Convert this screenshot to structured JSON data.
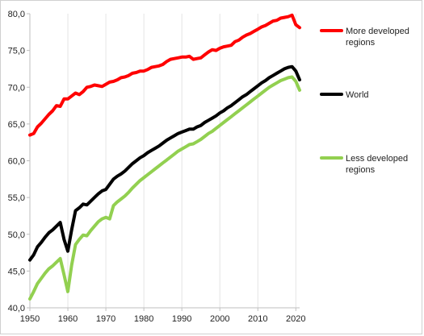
{
  "chart_data": {
    "type": "line",
    "title": "",
    "xlabel": "",
    "ylabel": "",
    "xlim": [
      1950,
      2021
    ],
    "ylim": [
      40,
      80
    ],
    "x_ticks": [
      1950,
      1960,
      1970,
      1980,
      1990,
      2000,
      2010,
      2020
    ],
    "y_ticks": [
      40,
      45,
      50,
      55,
      60,
      65,
      70,
      75,
      80
    ],
    "y_tick_labels": [
      "40,0",
      "45,0",
      "50,0",
      "55,0",
      "60,0",
      "65,0",
      "70,0",
      "75,0",
      "80,0"
    ],
    "grid": {
      "vertical": true,
      "horizontal": false
    },
    "legend_position": "right",
    "series": [
      {
        "name": "More developed regions",
        "name_lines": [
          "More developed",
          "regions"
        ],
        "color": "#ff0000",
        "points": [
          [
            1950,
            63.5
          ],
          [
            1951,
            63.7
          ],
          [
            1952,
            64.6
          ],
          [
            1953,
            65.1
          ],
          [
            1954,
            65.7
          ],
          [
            1955,
            66.3
          ],
          [
            1956,
            66.8
          ],
          [
            1957,
            67.5
          ],
          [
            1958,
            67.4
          ],
          [
            1959,
            68.4
          ],
          [
            1960,
            68.4
          ],
          [
            1961,
            68.8
          ],
          [
            1962,
            69.2
          ],
          [
            1963,
            69.0
          ],
          [
            1964,
            69.4
          ],
          [
            1965,
            70.0
          ],
          [
            1966,
            70.1
          ],
          [
            1967,
            70.3
          ],
          [
            1968,
            70.2
          ],
          [
            1969,
            70.1
          ],
          [
            1970,
            70.4
          ],
          [
            1971,
            70.7
          ],
          [
            1972,
            70.8
          ],
          [
            1973,
            71.0
          ],
          [
            1974,
            71.3
          ],
          [
            1975,
            71.4
          ],
          [
            1976,
            71.6
          ],
          [
            1977,
            71.9
          ],
          [
            1978,
            72.0
          ],
          [
            1979,
            72.2
          ],
          [
            1980,
            72.2
          ],
          [
            1981,
            72.4
          ],
          [
            1982,
            72.7
          ],
          [
            1983,
            72.8
          ],
          [
            1984,
            72.9
          ],
          [
            1985,
            73.1
          ],
          [
            1986,
            73.5
          ],
          [
            1987,
            73.8
          ],
          [
            1988,
            73.9
          ],
          [
            1989,
            74.0
          ],
          [
            1990,
            74.1
          ],
          [
            1991,
            74.1
          ],
          [
            1992,
            74.2
          ],
          [
            1993,
            73.8
          ],
          [
            1994,
            73.9
          ],
          [
            1995,
            74.0
          ],
          [
            1996,
            74.4
          ],
          [
            1997,
            74.8
          ],
          [
            1998,
            75.1
          ],
          [
            1999,
            75.0
          ],
          [
            2000,
            75.3
          ],
          [
            2001,
            75.5
          ],
          [
            2002,
            75.6
          ],
          [
            2003,
            75.7
          ],
          [
            2004,
            76.2
          ],
          [
            2005,
            76.4
          ],
          [
            2006,
            76.8
          ],
          [
            2007,
            77.1
          ],
          [
            2008,
            77.3
          ],
          [
            2009,
            77.6
          ],
          [
            2010,
            77.9
          ],
          [
            2011,
            78.2
          ],
          [
            2012,
            78.4
          ],
          [
            2013,
            78.7
          ],
          [
            2014,
            79.0
          ],
          [
            2015,
            79.1
          ],
          [
            2016,
            79.4
          ],
          [
            2017,
            79.5
          ],
          [
            2018,
            79.6
          ],
          [
            2019,
            79.8
          ],
          [
            2020,
            78.5
          ],
          [
            2021,
            78.1
          ]
        ]
      },
      {
        "name": "World",
        "name_lines": [
          "World"
        ],
        "color": "#000000",
        "points": [
          [
            1950,
            46.5
          ],
          [
            1951,
            47.2
          ],
          [
            1952,
            48.3
          ],
          [
            1953,
            48.9
          ],
          [
            1954,
            49.6
          ],
          [
            1955,
            50.2
          ],
          [
            1956,
            50.6
          ],
          [
            1957,
            51.1
          ],
          [
            1958,
            51.6
          ],
          [
            1959,
            49.3
          ],
          [
            1960,
            47.7
          ],
          [
            1961,
            50.6
          ],
          [
            1962,
            53.2
          ],
          [
            1963,
            53.6
          ],
          [
            1964,
            54.1
          ],
          [
            1965,
            54.0
          ],
          [
            1966,
            54.5
          ],
          [
            1967,
            55.0
          ],
          [
            1968,
            55.5
          ],
          [
            1969,
            55.9
          ],
          [
            1970,
            56.1
          ],
          [
            1971,
            56.8
          ],
          [
            1972,
            57.5
          ],
          [
            1973,
            57.9
          ],
          [
            1974,
            58.2
          ],
          [
            1975,
            58.6
          ],
          [
            1976,
            59.1
          ],
          [
            1977,
            59.6
          ],
          [
            1978,
            60.0
          ],
          [
            1979,
            60.4
          ],
          [
            1980,
            60.7
          ],
          [
            1981,
            61.1
          ],
          [
            1982,
            61.4
          ],
          [
            1983,
            61.7
          ],
          [
            1984,
            62.0
          ],
          [
            1985,
            62.4
          ],
          [
            1986,
            62.8
          ],
          [
            1987,
            63.1
          ],
          [
            1988,
            63.4
          ],
          [
            1989,
            63.7
          ],
          [
            1990,
            63.9
          ],
          [
            1991,
            64.1
          ],
          [
            1992,
            64.3
          ],
          [
            1993,
            64.3
          ],
          [
            1994,
            64.6
          ],
          [
            1995,
            64.8
          ],
          [
            1996,
            65.2
          ],
          [
            1997,
            65.5
          ],
          [
            1998,
            65.8
          ],
          [
            1999,
            66.1
          ],
          [
            2000,
            66.5
          ],
          [
            2001,
            66.8
          ],
          [
            2002,
            67.2
          ],
          [
            2003,
            67.5
          ],
          [
            2004,
            67.9
          ],
          [
            2005,
            68.3
          ],
          [
            2006,
            68.7
          ],
          [
            2007,
            69.0
          ],
          [
            2008,
            69.4
          ],
          [
            2009,
            69.8
          ],
          [
            2010,
            70.2
          ],
          [
            2011,
            70.6
          ],
          [
            2012,
            70.9
          ],
          [
            2013,
            71.3
          ],
          [
            2014,
            71.6
          ],
          [
            2015,
            71.9
          ],
          [
            2016,
            72.2
          ],
          [
            2017,
            72.5
          ],
          [
            2018,
            72.7
          ],
          [
            2019,
            72.8
          ],
          [
            2020,
            72.2
          ],
          [
            2021,
            71.0
          ]
        ]
      },
      {
        "name": "Less developed regions",
        "name_lines": [
          "Less developed",
          "regions"
        ],
        "color": "#92d050",
        "points": [
          [
            1950,
            41.2
          ],
          [
            1951,
            42.2
          ],
          [
            1952,
            43.3
          ],
          [
            1953,
            44.0
          ],
          [
            1954,
            44.7
          ],
          [
            1955,
            45.3
          ],
          [
            1956,
            45.7
          ],
          [
            1957,
            46.2
          ],
          [
            1958,
            46.7
          ],
          [
            1959,
            44.5
          ],
          [
            1960,
            42.2
          ],
          [
            1961,
            45.8
          ],
          [
            1962,
            48.6
          ],
          [
            1963,
            49.3
          ],
          [
            1964,
            49.9
          ],
          [
            1965,
            49.8
          ],
          [
            1966,
            50.5
          ],
          [
            1967,
            51.1
          ],
          [
            1968,
            51.7
          ],
          [
            1969,
            52.1
          ],
          [
            1970,
            52.3
          ],
          [
            1971,
            52.1
          ],
          [
            1972,
            53.9
          ],
          [
            1973,
            54.4
          ],
          [
            1974,
            54.8
          ],
          [
            1975,
            55.2
          ],
          [
            1976,
            55.7
          ],
          [
            1977,
            56.3
          ],
          [
            1978,
            56.8
          ],
          [
            1979,
            57.3
          ],
          [
            1980,
            57.7
          ],
          [
            1981,
            58.1
          ],
          [
            1982,
            58.5
          ],
          [
            1983,
            58.9
          ],
          [
            1984,
            59.3
          ],
          [
            1985,
            59.7
          ],
          [
            1986,
            60.1
          ],
          [
            1987,
            60.5
          ],
          [
            1988,
            60.9
          ],
          [
            1989,
            61.3
          ],
          [
            1990,
            61.6
          ],
          [
            1991,
            61.9
          ],
          [
            1992,
            62.2
          ],
          [
            1993,
            62.3
          ],
          [
            1994,
            62.6
          ],
          [
            1995,
            62.9
          ],
          [
            1996,
            63.3
          ],
          [
            1997,
            63.7
          ],
          [
            1998,
            64.0
          ],
          [
            1999,
            64.4
          ],
          [
            2000,
            64.8
          ],
          [
            2001,
            65.2
          ],
          [
            2002,
            65.6
          ],
          [
            2003,
            66.0
          ],
          [
            2004,
            66.4
          ],
          [
            2005,
            66.8
          ],
          [
            2006,
            67.2
          ],
          [
            2007,
            67.6
          ],
          [
            2008,
            68.0
          ],
          [
            2009,
            68.4
          ],
          [
            2010,
            68.8
          ],
          [
            2011,
            69.2
          ],
          [
            2012,
            69.6
          ],
          [
            2013,
            70.0
          ],
          [
            2014,
            70.3
          ],
          [
            2015,
            70.6
          ],
          [
            2016,
            70.9
          ],
          [
            2017,
            71.1
          ],
          [
            2018,
            71.3
          ],
          [
            2019,
            71.4
          ],
          [
            2020,
            70.8
          ],
          [
            2021,
            69.6
          ]
        ]
      }
    ]
  }
}
